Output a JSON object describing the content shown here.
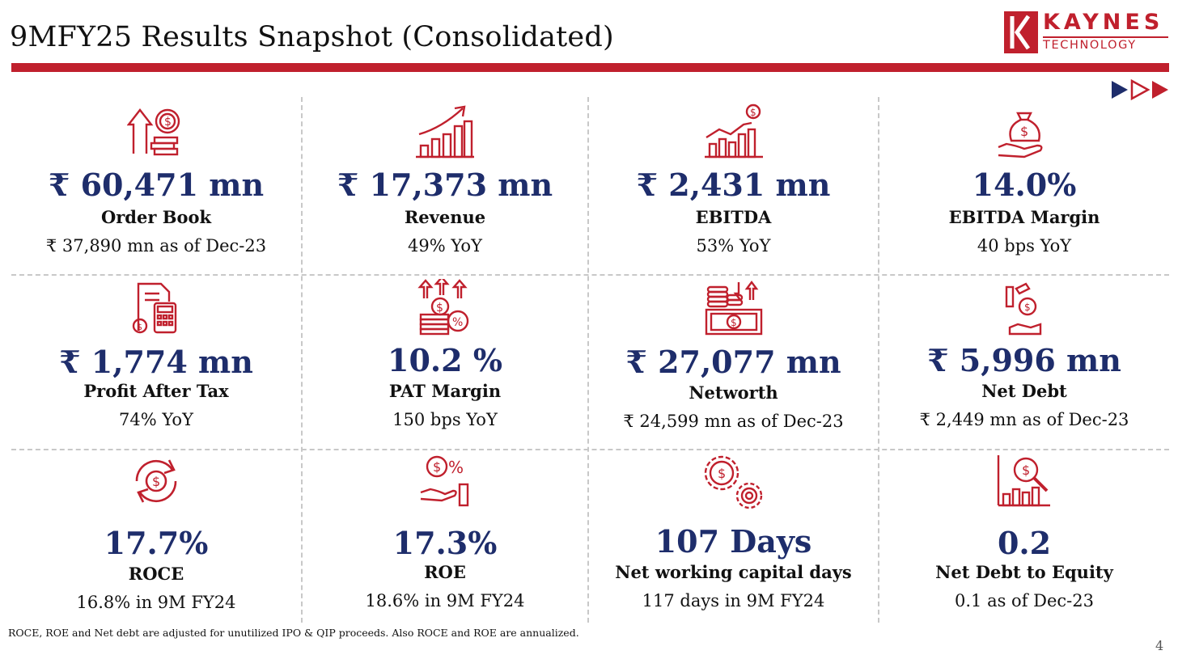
{
  "header": {
    "title": "9MFY25 Results Snapshot (Consolidated)",
    "logo_name": "KAYNES",
    "logo_sub": "TECHNOLOGY"
  },
  "colors": {
    "accent_red": "#c0202d",
    "value_navy": "#1e2d6b",
    "icon_red": "#c0202d"
  },
  "metrics": [
    {
      "icon": "order-book-icon",
      "value": "₹ 60,471 mn",
      "label": "Order Book",
      "sub": "₹ 37,890 mn as of Dec-23"
    },
    {
      "icon": "revenue-growth-icon",
      "value": "₹  17,373 mn",
      "label": "Revenue",
      "sub": "49% YoY"
    },
    {
      "icon": "ebitda-chart-icon",
      "value": "₹  2,431 mn",
      "label": "EBITDA",
      "sub": "53% YoY"
    },
    {
      "icon": "money-bag-hand-icon",
      "value": "14.0%",
      "label": "EBITDA Margin",
      "sub": "40 bps YoY"
    },
    {
      "icon": "calculator-document-icon",
      "value": "₹  1,774 mn",
      "label": "Profit After Tax",
      "sub": "74% YoY"
    },
    {
      "icon": "coins-percent-icon",
      "value": "10.2 %",
      "label": "PAT Margin",
      "sub": "150 bps YoY"
    },
    {
      "icon": "cash-stack-icon",
      "value": "₹  27,077 mn",
      "label": "Networth",
      "sub": "₹ 24,599  mn as of Dec-23"
    },
    {
      "icon": "debt-hand-icon",
      "value": "₹  5,996 mn",
      "label": "Net Debt",
      "sub": "₹  2,449 mn as of Dec-23"
    },
    {
      "icon": "dollar-cycle-icon",
      "value": "17.7%",
      "label": "ROCE",
      "sub": "16.8% in 9M FY24"
    },
    {
      "icon": "dollar-percent-hand-icon",
      "value": "17.3%",
      "label": "ROE",
      "sub": "18.6% in 9M FY24"
    },
    {
      "icon": "gears-dollar-icon",
      "value": "107 Days",
      "label": "Net working capital days",
      "sub": "117 days in 9M FY24"
    },
    {
      "icon": "chart-magnifier-icon",
      "value": "0.2",
      "label": "Net Debt to Equity",
      "sub": "0.1 as of Dec-23"
    }
  ],
  "footnote": "ROCE, ROE and Net debt  are adjusted for unutilized IPO & QIP proceeds. Also ROCE and ROE are annualized.",
  "page_number": "4"
}
